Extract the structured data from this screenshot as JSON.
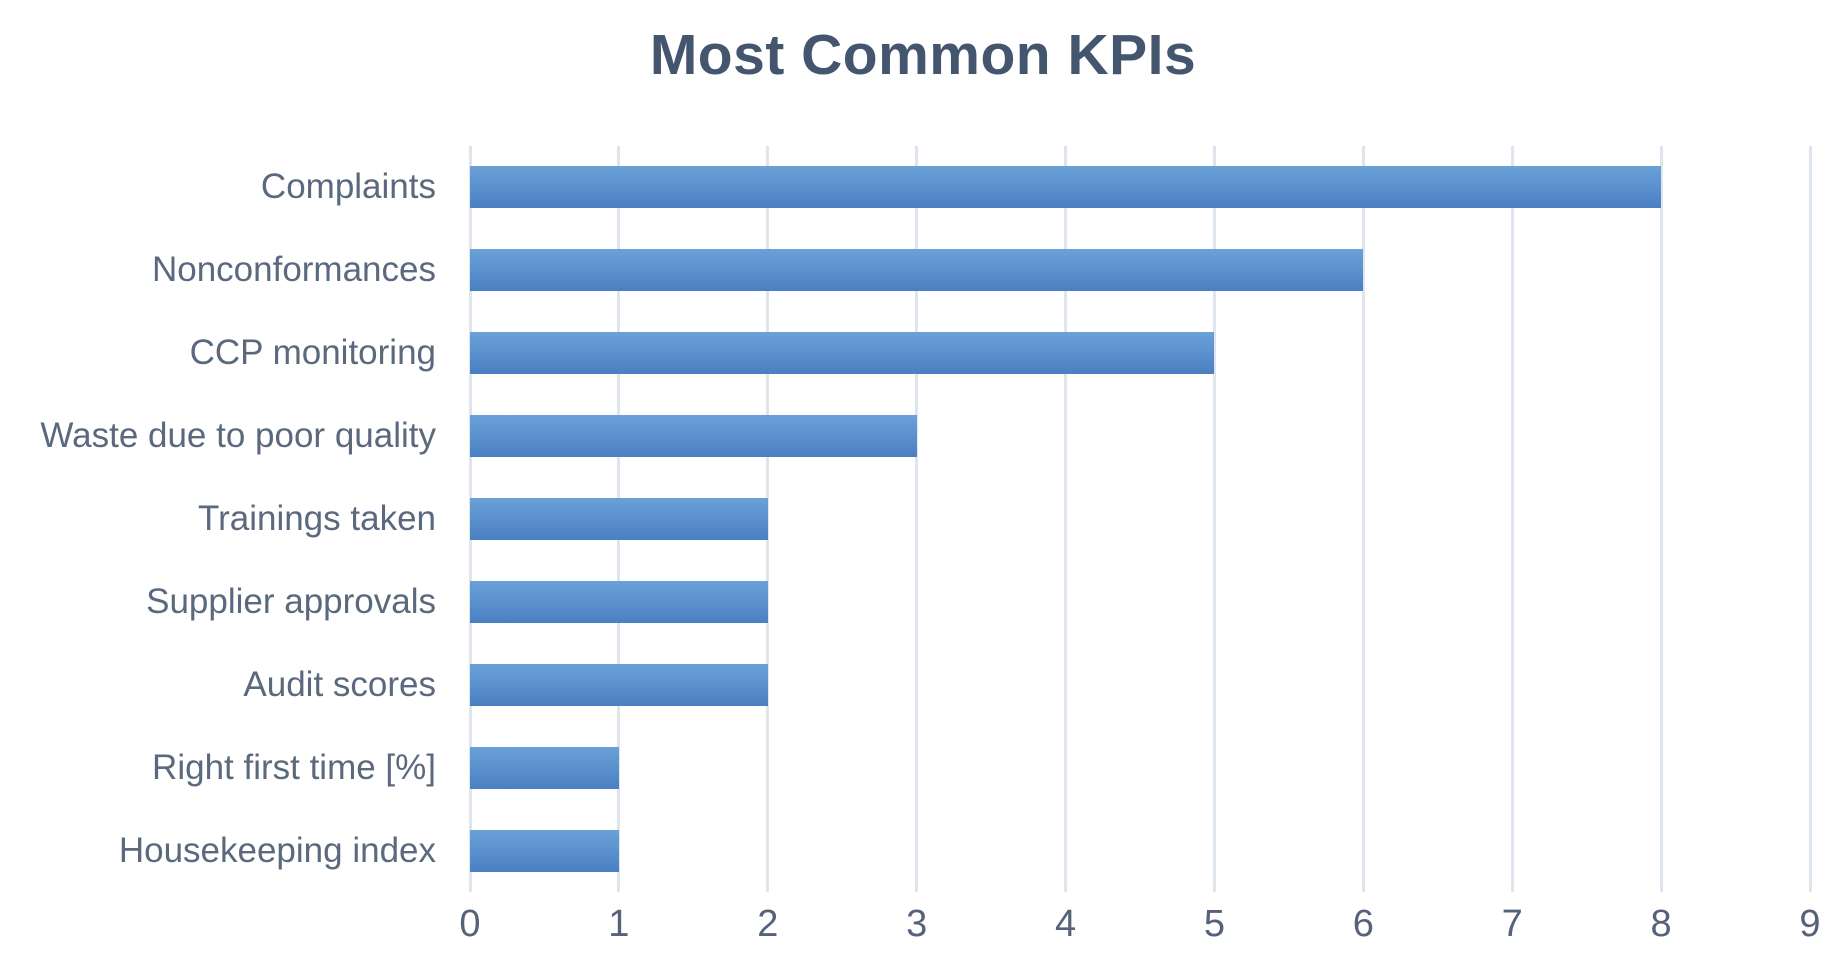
{
  "title": "Most Common KPIs",
  "colors": {
    "background": "#ffffff",
    "title": "#44566e",
    "category_label": "#5a697e",
    "tick_label": "#55627a",
    "bar_gradient_top": "#6ba1d8",
    "bar_gradient_bottom": "#4a80c2",
    "gridline": "#dfe5ec"
  },
  "chart_data": {
    "type": "bar",
    "orientation": "horizontal",
    "title": "Most Common KPIs",
    "categories": [
      "Complaints",
      "Nonconformances",
      "CCP monitoring",
      "Waste due to poor quality",
      "Trainings taken",
      "Supplier approvals",
      "Audit scores",
      "Right first time [%]",
      "Housekeeping index"
    ],
    "values": [
      8,
      6,
      5,
      3,
      2,
      2,
      2,
      1,
      1
    ],
    "xlabel": "",
    "ylabel": "",
    "xlim": [
      0,
      9
    ],
    "xticks": [
      0,
      1,
      2,
      3,
      4,
      5,
      6,
      7,
      8,
      9
    ],
    "grid": "vertical",
    "legend": "none"
  }
}
